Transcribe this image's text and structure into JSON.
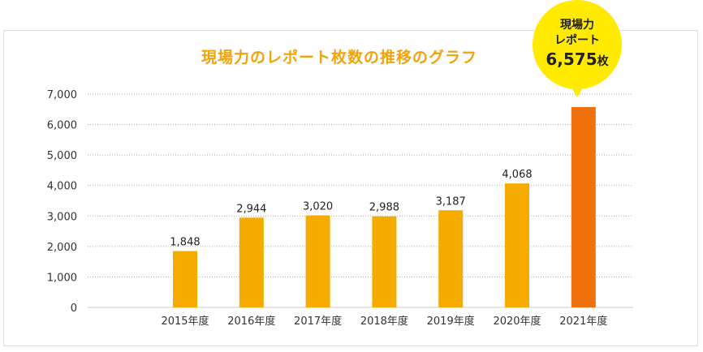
{
  "chart_data": {
    "type": "bar",
    "title": "現場力のレポート枚数の推移のグラフ",
    "categories": [
      "2015年度",
      "2016年度",
      "2017年度",
      "2018年度",
      "2019年度",
      "2020年度",
      "2021年度"
    ],
    "values": [
      1848,
      2944,
      3020,
      2988,
      3187,
      4068,
      6575
    ],
    "value_labels": [
      "1,848",
      "2,944",
      "3,020",
      "2,988",
      "3,187",
      "4,068",
      ""
    ],
    "y_ticks": [
      "0",
      "1,000",
      "2,000",
      "3,000",
      "4,000",
      "5,000",
      "6,000",
      "7,000"
    ],
    "ylim": [
      0,
      7000
    ],
    "xlabel": "",
    "ylabel": "",
    "grid": true,
    "colors": {
      "default": "#f5ab00",
      "highlight": "#f0720f",
      "grid": "#aaaaaa",
      "axis": "#cccccc"
    },
    "highlight_index": 6
  },
  "callout": {
    "line1": "現場力",
    "line2": "レポート",
    "value": "6,575",
    "unit": "枚",
    "color": "#ffea00"
  }
}
